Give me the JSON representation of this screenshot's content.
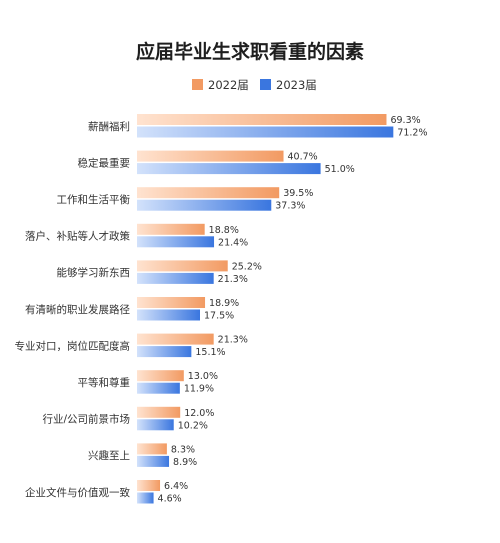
{
  "chart_data": {
    "type": "bar",
    "orientation": "horizontal",
    "title": "应届毕业生求职看重的因素",
    "categories": [
      "薪酬福利",
      "稳定最重要",
      "工作和生活平衡",
      "落户、补贴等人才政策",
      "能够学习新东西",
      "有清晰的职业发展路径",
      "专业对口，岗位匹配度高",
      "平等和尊重",
      "行业/公司前景市场",
      "兴趣至上",
      "企业文件与价值观一致"
    ],
    "series": [
      {
        "name": "2022届",
        "color": "#F29A62",
        "values": [
          69.3,
          40.7,
          39.5,
          18.8,
          25.2,
          18.9,
          21.3,
          13.0,
          12.0,
          8.3,
          6.4
        ],
        "labels": [
          "69.3%",
          "40.7%",
          "39.5%",
          "18.8%",
          "25.2%",
          "18.9%",
          "21.3%",
          "13.0%",
          "12.0%",
          "8.3%",
          "6.4%"
        ]
      },
      {
        "name": "2023届",
        "color": "#3A76DF",
        "values": [
          71.2,
          51.0,
          37.3,
          21.4,
          21.3,
          17.5,
          15.1,
          11.9,
          10.2,
          8.9,
          4.6
        ],
        "labels": [
          "71.2%",
          "51.0%",
          "37.3%",
          "21.4%",
          "21.3%",
          "17.5%",
          "15.1%",
          "11.9%",
          "10.2%",
          "8.9%",
          "4.6%"
        ]
      }
    ],
    "xlim": [
      0,
      80
    ],
    "grid": false,
    "legend_position": "top-center",
    "value_suffix": "%"
  }
}
